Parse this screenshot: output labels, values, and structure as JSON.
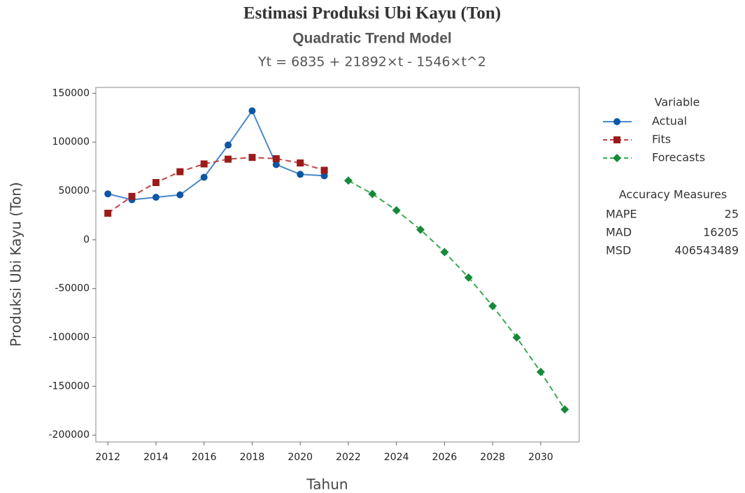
{
  "chart_data": {
    "type": "line",
    "title": "Estimasi  Produksi Ubi Kayu (Ton)",
    "subtitle": "Quadratic Trend Model",
    "equation": "Yt = 6835 + 21892×t - 1546×t^2",
    "x_label": "Tahun",
    "y_label": "Produksi Ubi Kayu (Ton)",
    "xlim": [
      2011.5,
      2031.6
    ],
    "ylim": [
      -207000,
      156000
    ],
    "xticks": [
      2012,
      2014,
      2016,
      2018,
      2020,
      2022,
      2024,
      2026,
      2028,
      2030
    ],
    "yticks": [
      -200000,
      -150000,
      -100000,
      -50000,
      0,
      50000,
      100000,
      150000
    ],
    "grid": false,
    "legend_title": "Variable",
    "series": [
      {
        "name": "Actual",
        "color": "#0b57a4",
        "line_color": "#4a88cc",
        "marker": "circle",
        "dash": false,
        "x": [
          2012,
          2013,
          2014,
          2015,
          2016,
          2017,
          2018,
          2019,
          2020,
          2021
        ],
        "values": [
          47000,
          41000,
          43500,
          46000,
          64000,
          97000,
          132000,
          77000,
          67000,
          65500
        ]
      },
      {
        "name": "Fits",
        "color": "#9b1b1b",
        "line_color": "#c24444",
        "marker": "square",
        "dash": true,
        "x": [
          2012,
          2013,
          2014,
          2015,
          2016,
          2017,
          2018,
          2019,
          2020,
          2021
        ],
        "values": [
          27181,
          44435,
          58597,
          69667,
          77645,
          82531,
          84325,
          83027,
          78637,
          71155
        ]
      },
      {
        "name": "Forecasts",
        "color": "#17893a",
        "line_color": "#3aaa50",
        "marker": "diamond",
        "dash": true,
        "x": [
          2022,
          2023,
          2024,
          2025,
          2026,
          2027,
          2028,
          2029,
          2030,
          2031
        ],
        "values": [
          60581,
          46915,
          30157,
          10307,
          -12635,
          -38669,
          -67795,
          -100013,
          -135323,
          -173725
        ]
      }
    ],
    "accuracy_measures": {
      "title": "Accuracy Measures",
      "rows": [
        {
          "label": "MAPE",
          "value": 25
        },
        {
          "label": "MAD",
          "value": 16205
        },
        {
          "label": "MSD",
          "value": 406543489
        }
      ]
    }
  }
}
